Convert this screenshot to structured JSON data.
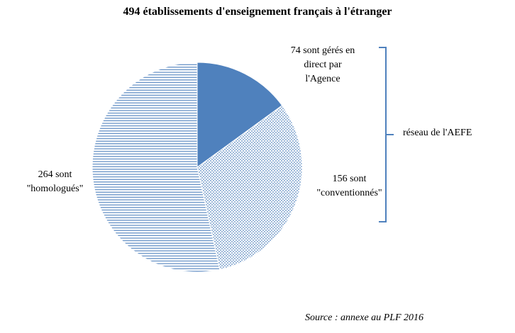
{
  "title": "494 établissements d'enseignement français à l'étranger",
  "source": "Source : annexe au PLF 2016",
  "chart_data": {
    "type": "pie",
    "title": "494 établissements d'enseignement français à l'étranger",
    "values_sum": 494,
    "start_angle": "top",
    "direction": "clockwise",
    "colors": {
      "primary": "#4f81bd",
      "background": "#ffffff"
    },
    "slices": [
      {
        "name": "gérés en direct par l'Agence",
        "value": 74,
        "pattern": "solid",
        "callout": "74 sont gérés en\ndirect par\nl'Agence"
      },
      {
        "name": "conventionnés",
        "value": 156,
        "pattern": "dots",
        "callout": "156 sont\n\"conventionnés\""
      },
      {
        "name": "homologués",
        "value": 264,
        "pattern": "horizontal-lines",
        "callout": "264 sont\n\"homologués\""
      }
    ],
    "bracket": {
      "label": "réseau de l'AEFE",
      "covers_values": [
        74,
        156
      ],
      "side": "right"
    }
  }
}
